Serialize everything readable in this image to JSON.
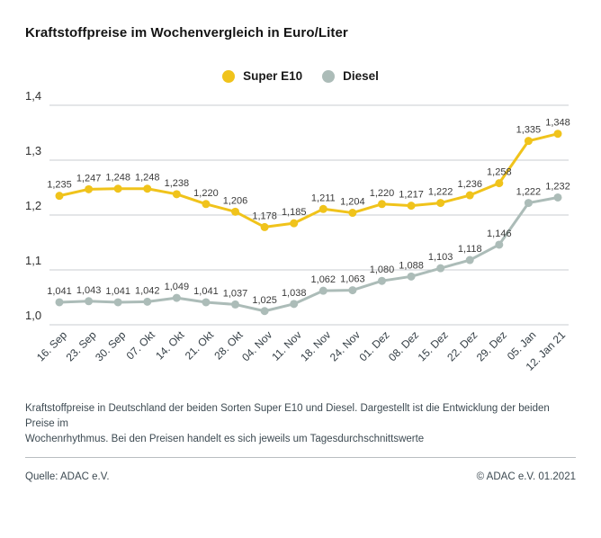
{
  "title": "Kraftstoffpreise im Wochenvergleich in Euro/Liter",
  "legend": [
    {
      "label": "Super E10",
      "color": "#F0C31B"
    },
    {
      "label": "Diesel",
      "color": "#ACBCB8"
    }
  ],
  "chart_data": {
    "type": "line",
    "title": "Kraftstoffpreise im Wochenvergleich in Euro/Liter",
    "categories": [
      "16. Sep",
      "23. Sep",
      "30. Sep",
      "07. Okt",
      "14. Okt",
      "21. Okt",
      "28. Okt",
      "04. Nov",
      "11. Nov",
      "18. Nov",
      "24. Nov",
      "01. Dez",
      "08. Dez",
      "15. Dez",
      "22. Dez",
      "29. Dez",
      "05. Jan",
      "12. Jan 21"
    ],
    "series": [
      {
        "name": "Super E10",
        "color": "#F0C31B",
        "values": [
          1.235,
          1.247,
          1.248,
          1.248,
          1.238,
          1.22,
          1.206,
          1.178,
          1.185,
          1.211,
          1.204,
          1.22,
          1.217,
          1.222,
          1.236,
          1.258,
          1.335,
          1.348
        ]
      },
      {
        "name": "Diesel",
        "color": "#ACBCB8",
        "values": [
          1.041,
          1.043,
          1.041,
          1.042,
          1.049,
          1.041,
          1.037,
          1.025,
          1.038,
          1.062,
          1.063,
          1.08,
          1.088,
          1.103,
          1.118,
          1.146,
          1.222,
          1.232
        ]
      }
    ],
    "xlabel": "",
    "ylabel": "",
    "ylim": [
      1.0,
      1.4
    ],
    "ytick_step": 0.1,
    "ytick_labels": [
      "1,0",
      "1,1",
      "1,2",
      "1,3",
      "1,4"
    ],
    "decimal_separator": ",",
    "grid": true,
    "point_labels": true,
    "legend_position": "top-center",
    "grid_color": "#c9cdd0",
    "label_color": "#3a3a3a",
    "tick_color": "#333d44"
  },
  "caption": {
    "lines": [
      "Kraftstoffpreise in Deutschland der beiden Sorten Super E10 und Diesel. Dargestellt ist die Entwicklung der beiden Preise im",
      "Wochenrhythmus. Bei den Preisen handelt es sich jeweils um Tagesdurchschnittswerte"
    ]
  },
  "footer": {
    "source": "Quelle: ADAC e.V.",
    "copyright": "© ADAC e.V. 01.2021"
  }
}
